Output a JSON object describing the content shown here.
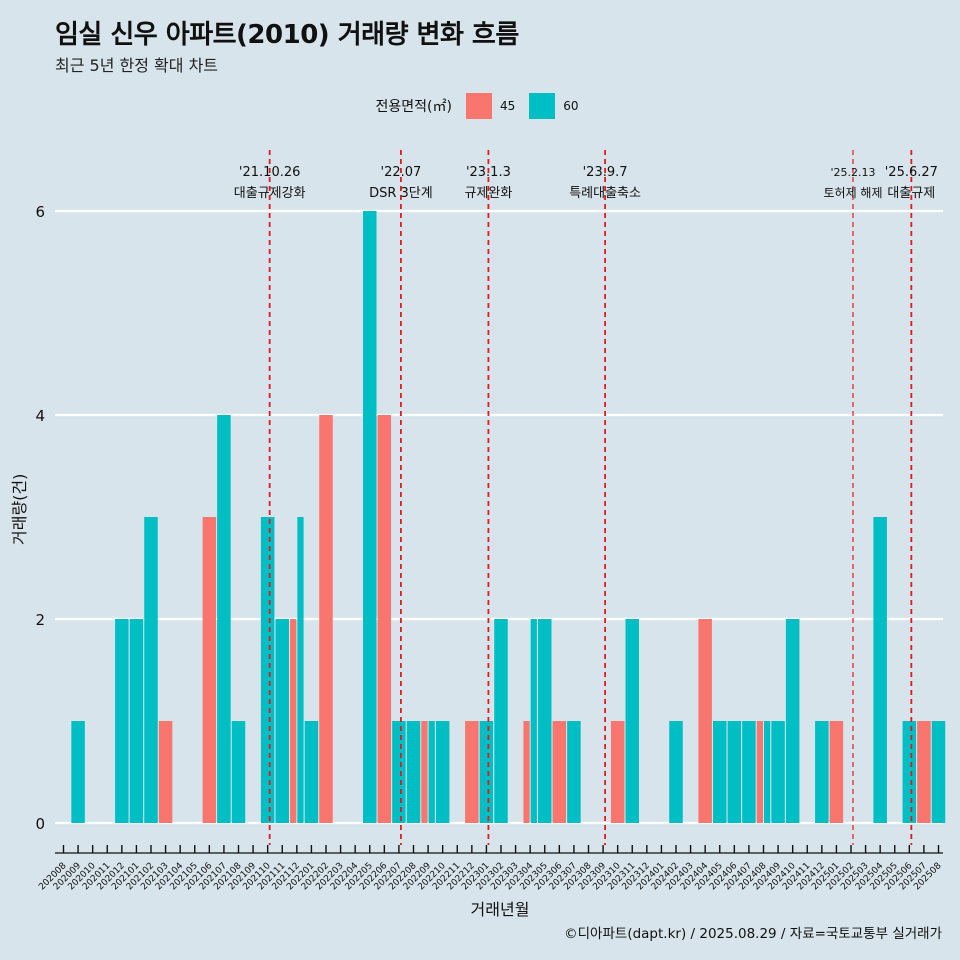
{
  "title": "임실 신우 아파트(2010) 거래량 변화 흐름",
  "subtitle": "최근 5년 한정 확대 차트",
  "caption": "©디아파트(dapt.kr) / 2025.08.29 / 자료=국토교통부 실거래가",
  "colors": {
    "45": "#f8766d",
    "60": "#00bfc4",
    "background": "#d7e4eb",
    "grid": "#ffffff",
    "event_line": "#e41a1c"
  },
  "chart_data": {
    "type": "bar",
    "xlabel": "거래년월",
    "ylabel": "거래량(건)",
    "ylim": [
      0,
      6
    ],
    "yticks": [
      0,
      2,
      4,
      6
    ],
    "grid": true,
    "legend": {
      "title": "전용면적(㎡)",
      "position": "top"
    },
    "categories": [
      "202008",
      "202009",
      "202010",
      "202011",
      "202012",
      "202101",
      "202102",
      "202103",
      "202104",
      "202105",
      "202106",
      "202107",
      "202108",
      "202109",
      "202110",
      "202111",
      "202112",
      "202201",
      "202202",
      "202203",
      "202204",
      "202205",
      "202206",
      "202207",
      "202208",
      "202209",
      "202210",
      "202211",
      "202212",
      "202301",
      "202302",
      "202303",
      "202304",
      "202305",
      "202306",
      "202307",
      "202308",
      "202309",
      "202310",
      "202311",
      "202312",
      "202401",
      "202402",
      "202403",
      "202404",
      "202405",
      "202406",
      "202407",
      "202408",
      "202409",
      "202410",
      "202411",
      "202412",
      "202501",
      "202502",
      "202503",
      "202504",
      "202505",
      "202506",
      "202507",
      "202508"
    ],
    "series": [
      {
        "name": "45",
        "values": [
          0,
          0,
          0,
          0,
          0,
          0,
          0,
          1,
          0,
          0,
          3,
          0,
          0,
          0,
          0,
          0,
          2,
          0,
          4,
          0,
          0,
          0,
          4,
          0,
          0,
          1,
          0,
          0,
          1,
          0,
          0,
          0,
          1,
          0,
          1,
          0,
          0,
          0,
          1,
          0,
          0,
          0,
          0,
          0,
          2,
          0,
          0,
          0,
          1,
          0,
          0,
          0,
          0,
          1,
          0,
          0,
          0,
          0,
          0,
          1,
          0
        ]
      },
      {
        "name": "60",
        "values": [
          0,
          1,
          0,
          0,
          2,
          2,
          3,
          0,
          0,
          0,
          0,
          4,
          1,
          0,
          3,
          2,
          3,
          1,
          0,
          0,
          0,
          6,
          0,
          1,
          1,
          1,
          1,
          0,
          0,
          1,
          2,
          0,
          2,
          2,
          0,
          1,
          0,
          0,
          0,
          2,
          0,
          0,
          1,
          0,
          0,
          1,
          1,
          1,
          1,
          1,
          2,
          0,
          1,
          0,
          0,
          0,
          3,
          0,
          1,
          0,
          1
        ]
      }
    ],
    "events": [
      {
        "x": "202110",
        "date": "'21.10.26",
        "label": "대출규제강화",
        "style": "dashed"
      },
      {
        "x": "202207",
        "date": "'22.07",
        "label": "DSR 3단계",
        "style": "dashed"
      },
      {
        "x": "202301",
        "date": "'23.1.3",
        "label": "규제완화",
        "style": "dashed"
      },
      {
        "x": "202309",
        "date": "'23.9.7",
        "label": "특례대출축소",
        "style": "dashed"
      },
      {
        "x": "202502",
        "date": "'25.2.13",
        "label": "토허제 해제",
        "style": "dashed-thin"
      },
      {
        "x": "202506",
        "date": "'25.6.27",
        "label": "대출규제",
        "style": "dashed"
      }
    ]
  }
}
